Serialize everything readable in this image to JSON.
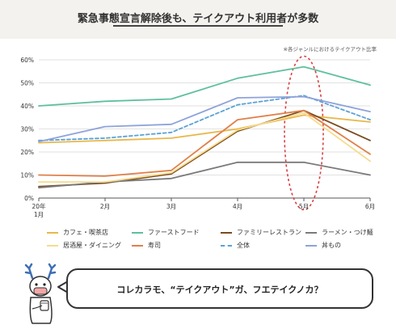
{
  "header": {
    "title": "緊急事態宣言解除後も、テイクアウト利用者が多数"
  },
  "chart_data": {
    "type": "line",
    "title": "緊急事態宣言解除後も、テイクアウト利用者が多数",
    "note": "※各ジャンルにおけるテイクアウト比率",
    "categories": [
      "20年1月",
      "2月",
      "3月",
      "4月",
      "5月",
      "6月"
    ],
    "x_tick_labels": [
      [
        "20年",
        "1月"
      ],
      [
        "2月"
      ],
      [
        "3月"
      ],
      [
        "4月"
      ],
      [
        "5月"
      ],
      [
        "6月"
      ]
    ],
    "ylim": [
      0,
      60
    ],
    "yticks": [
      0,
      10,
      20,
      30,
      40,
      50,
      60
    ],
    "ytick_labels": [
      "0%",
      "10%",
      "20%",
      "30%",
      "40%",
      "50%",
      "60%"
    ],
    "grid": true,
    "highlight": {
      "category": "5月",
      "style": "red-dashed-ellipse"
    },
    "series": [
      {
        "name": "カフェ・喫茶店",
        "color": "#e8b84a",
        "dashed": false,
        "values": [
          24,
          25,
          26,
          30,
          36,
          33
        ]
      },
      {
        "name": "ファーストフード",
        "color": "#5fbf9f",
        "dashed": false,
        "values": [
          40,
          42,
          43,
          52,
          57,
          49
        ]
      },
      {
        "name": "ファミリーレストラン",
        "color": "#7a4a1e",
        "dashed": false,
        "values": [
          5,
          6.5,
          10.5,
          29,
          38,
          25
        ]
      },
      {
        "name": "ラーメン・つけ麺",
        "color": "#7a7a7a",
        "dashed": false,
        "values": [
          4.5,
          7,
          8.5,
          15.5,
          15.5,
          10
        ]
      },
      {
        "name": "居酒屋・ダイニング",
        "color": "#f5dc8e",
        "dashed": false,
        "values": [
          7,
          7,
          11,
          29.5,
          37,
          16
        ]
      },
      {
        "name": "寿司",
        "color": "#e0804a",
        "dashed": false,
        "values": [
          10,
          9.5,
          12,
          34,
          38,
          19
        ]
      },
      {
        "name": "全体",
        "color": "#5aa2d8",
        "dashed": true,
        "values": [
          25,
          26,
          28.5,
          40.5,
          44.5,
          34
        ]
      },
      {
        "name": "丼もの",
        "color": "#8fa3db",
        "dashed": false,
        "values": [
          24.5,
          31,
          32,
          43.5,
          44,
          37.5
        ]
      }
    ],
    "legend": {
      "placement": "bottom",
      "rows": [
        [
          "カフェ・喫茶店",
          "ファーストフード",
          "ファミリーレストラン",
          "ラーメン・つけ麺"
        ],
        [
          "居酒屋・ダイニング",
          "寿司",
          "全体",
          "丼もの"
        ]
      ]
    }
  },
  "speech": {
    "text": "コレカラモ、“テイクアウト”ガ、フエテイクノカ？",
    "mascot": "reindeer-mascot-icon"
  }
}
